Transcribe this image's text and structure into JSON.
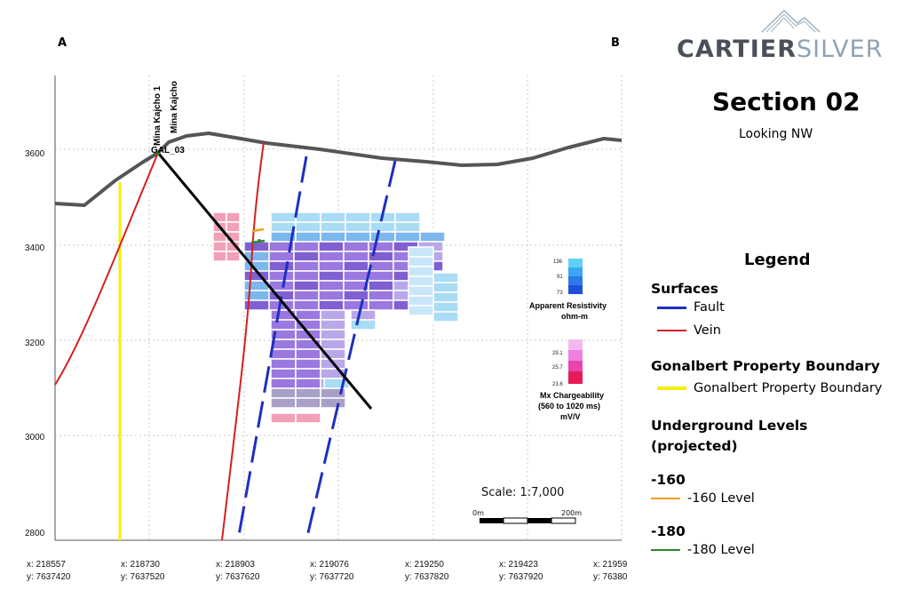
{
  "section": {
    "corner_left": "A",
    "corner_right": "B",
    "y_ticks": [
      "3600",
      "3400",
      "3200",
      "3000",
      "2800"
    ],
    "x_ticks": [
      {
        "x": "x: 218557",
        "y": "y: 7637420"
      },
      {
        "x": "x: 218730",
        "y": "y: 7637520"
      },
      {
        "x": "x: 218903",
        "y": "y: 7637620"
      },
      {
        "x": "x: 219076",
        "y": "y: 7637720"
      },
      {
        "x": "x: 219250",
        "y": "y: 7637820"
      },
      {
        "x": "x: 219423",
        "y": "y: 7637920"
      },
      {
        "x": "x: 21959",
        "y": "y: 76380"
      }
    ],
    "hole_label_1": "Mina Kajcho 1",
    "hole_label_2": "Mina Kajcho",
    "hole_label_3": "GAL_03",
    "resistivity": {
      "values": [
        "136",
        "91",
        "73"
      ],
      "title": "Apparent Resistivity",
      "unit": "ohm-m"
    },
    "chargeability": {
      "values": [
        "29.1",
        "25.7",
        "23.6"
      ],
      "title": "Mx Chargeability",
      "window": "(560 to 1020 ms)",
      "unit": "mV/V"
    },
    "scale": {
      "label": "Scale: 1:7,000",
      "start": "0m",
      "end": "200m"
    }
  },
  "brand": {
    "name_part1": "CARTIER",
    "name_part2": "SILVER",
    "color_dark": "#4a4f59",
    "color_light": "#8fa3b3"
  },
  "header": {
    "title": "Section 02",
    "subtitle": "Looking NW"
  },
  "legend": {
    "title": "Legend",
    "groups": [
      {
        "heading": "Surfaces",
        "items": [
          {
            "label": "Fault",
            "color": "#1f2fbf"
          },
          {
            "label": "Vein",
            "color": "#d42020"
          }
        ]
      },
      {
        "heading": "Gonalbert Property Boundary",
        "items": [
          {
            "label": "Gonalbert Property Boundary",
            "color": "#f5f000"
          }
        ]
      },
      {
        "heading": "Underground Levels",
        "heading_line2": "(projected)",
        "items": []
      },
      {
        "heading": "-160",
        "items": [
          {
            "label": "-160 Level",
            "color": "#f0a020"
          }
        ]
      },
      {
        "heading": "-180",
        "items": [
          {
            "label": "-180 Level",
            "color": "#2a8a2a"
          }
        ]
      }
    ]
  }
}
